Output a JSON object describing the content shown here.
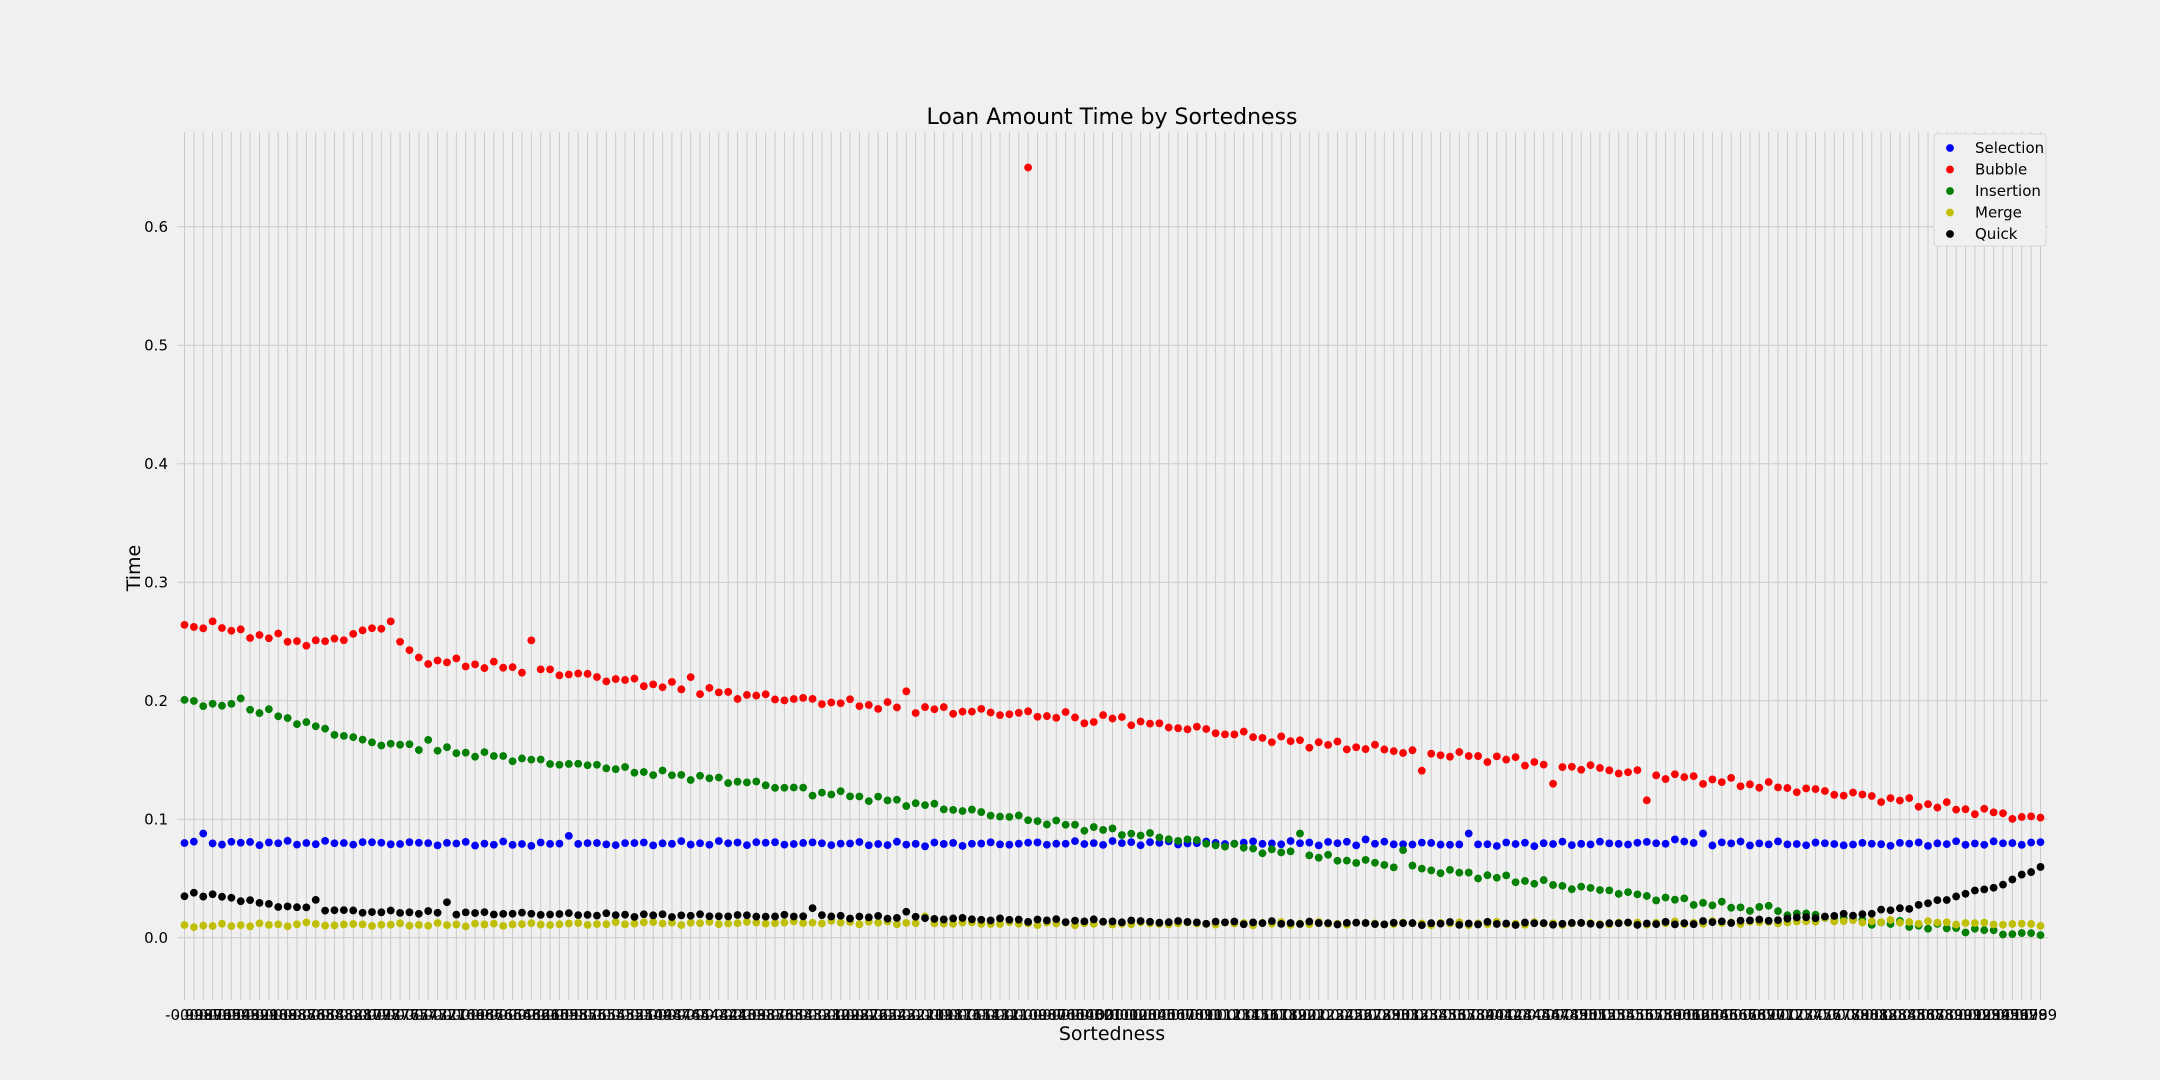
{
  "chart_data": {
    "type": "scatter",
    "title": "Loan Amount Time by Sortedness",
    "xlabel": "Sortedness",
    "ylabel": "Time",
    "ylim": [
      -0.0525,
      0.68
    ],
    "yticks": [
      0.0,
      0.1,
      0.2,
      0.3,
      0.4,
      0.5,
      0.6
    ],
    "ytick_labels": [
      "0.0",
      "0.1",
      "0.2",
      "0.3",
      "0.4",
      "0.5",
      "0.6"
    ],
    "xlim": [
      -0.998,
      0.998
    ],
    "x_start": -0.99,
    "x_end": 0.99,
    "point_count": 199,
    "grid": true,
    "legend_position": "top-right",
    "series": [
      {
        "name": "Selection",
        "color": "#0000ff",
        "points": [
          [
            -0.99,
            0.08
          ],
          [
            -0.8,
            0.08
          ],
          [
            -0.6,
            0.079
          ],
          [
            -0.4,
            0.08
          ],
          [
            -0.2,
            0.079
          ],
          [
            0,
            0.08
          ],
          [
            0.2,
            0.08
          ],
          [
            0.4,
            0.079
          ],
          [
            0.6,
            0.08
          ],
          [
            0.8,
            0.079
          ],
          [
            0.99,
            0.08
          ]
        ],
        "highlights": [
          [
            -0.97,
            0.088
          ],
          [
            -0.58,
            0.086
          ],
          [
            0.27,
            0.083
          ],
          [
            0.38,
            0.088
          ],
          [
            0.6,
            0.083
          ],
          [
            0.63,
            0.088
          ]
        ],
        "noise": 0.002
      },
      {
        "name": "Bubble",
        "color": "#ff0000",
        "points": [
          [
            -0.99,
            0.262
          ],
          [
            -0.95,
            0.26
          ],
          [
            -0.85,
            0.248
          ],
          [
            -0.78,
            0.262
          ],
          [
            -0.74,
            0.235
          ],
          [
            -0.6,
            0.225
          ],
          [
            -0.4,
            0.205
          ],
          [
            -0.2,
            0.193
          ],
          [
            0,
            0.185
          ],
          [
            0.1,
            0.175
          ],
          [
            0.2,
            0.165
          ],
          [
            0.4,
            0.152
          ],
          [
            0.6,
            0.136
          ],
          [
            0.8,
            0.12
          ],
          [
            0.99,
            0.1
          ]
        ],
        "highlights": [
          [
            -0.96,
            0.267
          ],
          [
            -0.77,
            0.267
          ],
          [
            -0.62,
            0.251
          ],
          [
            -0.45,
            0.22
          ],
          [
            -0.22,
            0.208
          ],
          [
            -0.03,
            0.181
          ],
          [
            0.05,
            0.181
          ],
          [
            0.33,
            0.141
          ],
          [
            0.47,
            0.13
          ],
          [
            0.57,
            0.116
          ]
        ],
        "outliers": [
          [
            -0.09,
            0.65
          ]
        ],
        "noise": 0.004
      },
      {
        "name": "Insertion",
        "color": "#008000",
        "points": [
          [
            -0.99,
            0.2
          ],
          [
            -0.95,
            0.196
          ],
          [
            -0.9,
            0.19
          ],
          [
            -0.8,
            0.166
          ],
          [
            -0.6,
            0.148
          ],
          [
            -0.4,
            0.132
          ],
          [
            -0.2,
            0.112
          ],
          [
            0,
            0.09
          ],
          [
            0.2,
            0.07
          ],
          [
            0.4,
            0.052
          ],
          [
            0.6,
            0.032
          ],
          [
            0.8,
            0.014
          ],
          [
            0.99,
            0.002
          ]
        ],
        "highlights": [
          [
            -0.93,
            0.202
          ],
          [
            -0.73,
            0.167
          ],
          [
            -0.55,
            0.146
          ],
          [
            -0.32,
            0.12
          ],
          [
            0.2,
            0.088
          ],
          [
            0.31,
            0.074
          ],
          [
            0.53,
            0.04
          ],
          [
            0.7,
            0.027
          ]
        ],
        "noise": 0.003
      },
      {
        "name": "Merge",
        "color": "#bfbf00",
        "points": [
          [
            -0.99,
            0.01
          ],
          [
            -0.9,
            0.011
          ],
          [
            -0.7,
            0.011
          ],
          [
            -0.5,
            0.012
          ],
          [
            -0.3,
            0.013
          ],
          [
            -0.1,
            0.012
          ],
          [
            0.1,
            0.012
          ],
          [
            0.3,
            0.012
          ],
          [
            0.5,
            0.012
          ],
          [
            0.7,
            0.013
          ],
          [
            0.8,
            0.014
          ],
          [
            0.99,
            0.011
          ]
        ],
        "highlights": [
          [
            -0.86,
            0.013
          ],
          [
            -0.5,
            0.013
          ],
          [
            -0.2,
            0.018
          ],
          [
            0.76,
            0.017
          ]
        ],
        "noise": 0.0015
      },
      {
        "name": "Quick",
        "color": "#000000",
        "points": [
          [
            -0.99,
            0.036
          ],
          [
            -0.95,
            0.035
          ],
          [
            -0.9,
            0.028
          ],
          [
            -0.85,
            0.024
          ],
          [
            -0.8,
            0.022
          ],
          [
            -0.7,
            0.021
          ],
          [
            -0.5,
            0.019
          ],
          [
            -0.3,
            0.018
          ],
          [
            -0.1,
            0.015
          ],
          [
            0.1,
            0.013
          ],
          [
            0.3,
            0.012
          ],
          [
            0.5,
            0.012
          ],
          [
            0.6,
            0.012
          ],
          [
            0.7,
            0.015
          ],
          [
            0.8,
            0.02
          ],
          [
            0.86,
            0.027
          ],
          [
            0.9,
            0.035
          ],
          [
            0.95,
            0.045
          ],
          [
            0.99,
            0.06
          ]
        ],
        "highlights": [
          [
            -0.98,
            0.038
          ],
          [
            -0.85,
            0.032
          ],
          [
            -0.71,
            0.03
          ],
          [
            -0.32,
            0.025
          ],
          [
            -0.22,
            0.022
          ]
        ],
        "noise": 0.0015
      }
    ]
  },
  "x_axis": {
    "first_label": "-0.99",
    "last_label": "0.99",
    "label_decimals": 2
  }
}
